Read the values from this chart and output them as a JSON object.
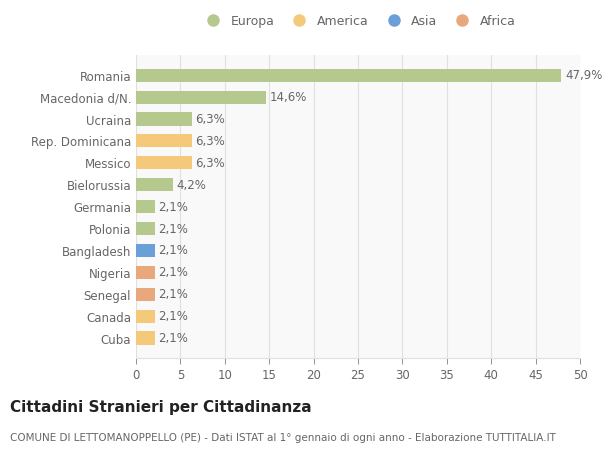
{
  "categories": [
    "Romania",
    "Macedonia d/N.",
    "Ucraina",
    "Rep. Dominicana",
    "Messico",
    "Bielorussia",
    "Germania",
    "Polonia",
    "Bangladesh",
    "Nigeria",
    "Senegal",
    "Canada",
    "Cuba"
  ],
  "values": [
    47.9,
    14.6,
    6.3,
    6.3,
    6.3,
    4.2,
    2.1,
    2.1,
    2.1,
    2.1,
    2.1,
    2.1,
    2.1
  ],
  "labels": [
    "47,9%",
    "14,6%",
    "6,3%",
    "6,3%",
    "6,3%",
    "4,2%",
    "2,1%",
    "2,1%",
    "2,1%",
    "2,1%",
    "2,1%",
    "2,1%",
    "2,1%"
  ],
  "colors": [
    "#b5c98e",
    "#b5c98e",
    "#b5c98e",
    "#f5c97a",
    "#f5c97a",
    "#b5c98e",
    "#b5c98e",
    "#b5c98e",
    "#6a9fd8",
    "#e8a87c",
    "#e8a87c",
    "#f5c97a",
    "#f5c97a"
  ],
  "legend_labels": [
    "Europa",
    "America",
    "Asia",
    "Africa"
  ],
  "legend_colors": [
    "#b5c98e",
    "#f5c97a",
    "#6a9fd8",
    "#e8a87c"
  ],
  "xlim": [
    0,
    50
  ],
  "xticks": [
    0,
    5,
    10,
    15,
    20,
    25,
    30,
    35,
    40,
    45,
    50
  ],
  "title": "Cittadini Stranieri per Cittadinanza",
  "subtitle": "COMUNE DI LETTOMANOPPELLO (PE) - Dati ISTAT al 1° gennaio di ogni anno - Elaborazione TUTTITALIA.IT",
  "background_color": "#ffffff",
  "plot_bg_color": "#f9f9f9",
  "grid_color": "#e0e0e0",
  "bar_height": 0.6,
  "label_fontsize": 8.5,
  "ytick_fontsize": 8.5,
  "xtick_fontsize": 8.5,
  "title_fontsize": 11,
  "subtitle_fontsize": 7.5,
  "label_color": "#666666",
  "title_color": "#222222",
  "subtitle_color": "#666666"
}
